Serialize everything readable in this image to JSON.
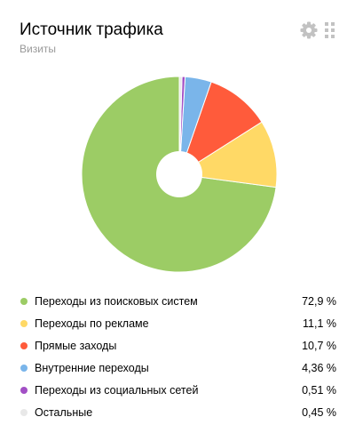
{
  "widget": {
    "title": "Источник трафика",
    "subtitle": "Визиты",
    "settings_icon": "gear-icon",
    "drag_icon": "drag-handle-icon"
  },
  "chart_data": {
    "type": "pie",
    "style": "donut",
    "title": "Источник трафика",
    "subtitle": "Визиты",
    "unit": "%",
    "legend_position": "bottom",
    "categories": [
      "Переходы из поисковых систем",
      "Переходы по рекламе",
      "Прямые заходы",
      "Внутренние переходы",
      "Переходы из социальных сетей",
      "Остальные"
    ],
    "values": [
      72.9,
      11.1,
      10.7,
      4.36,
      0.51,
      0.45
    ],
    "value_labels": [
      "72,9 %",
      "11,1 %",
      "10,7 %",
      "4,36 %",
      "0,51 %",
      "0,45 %"
    ],
    "colors": [
      "#9ccc65",
      "#ffd966",
      "#ff5b3b",
      "#7ab5ea",
      "#a24fc5",
      "#e8e8e8"
    ]
  }
}
